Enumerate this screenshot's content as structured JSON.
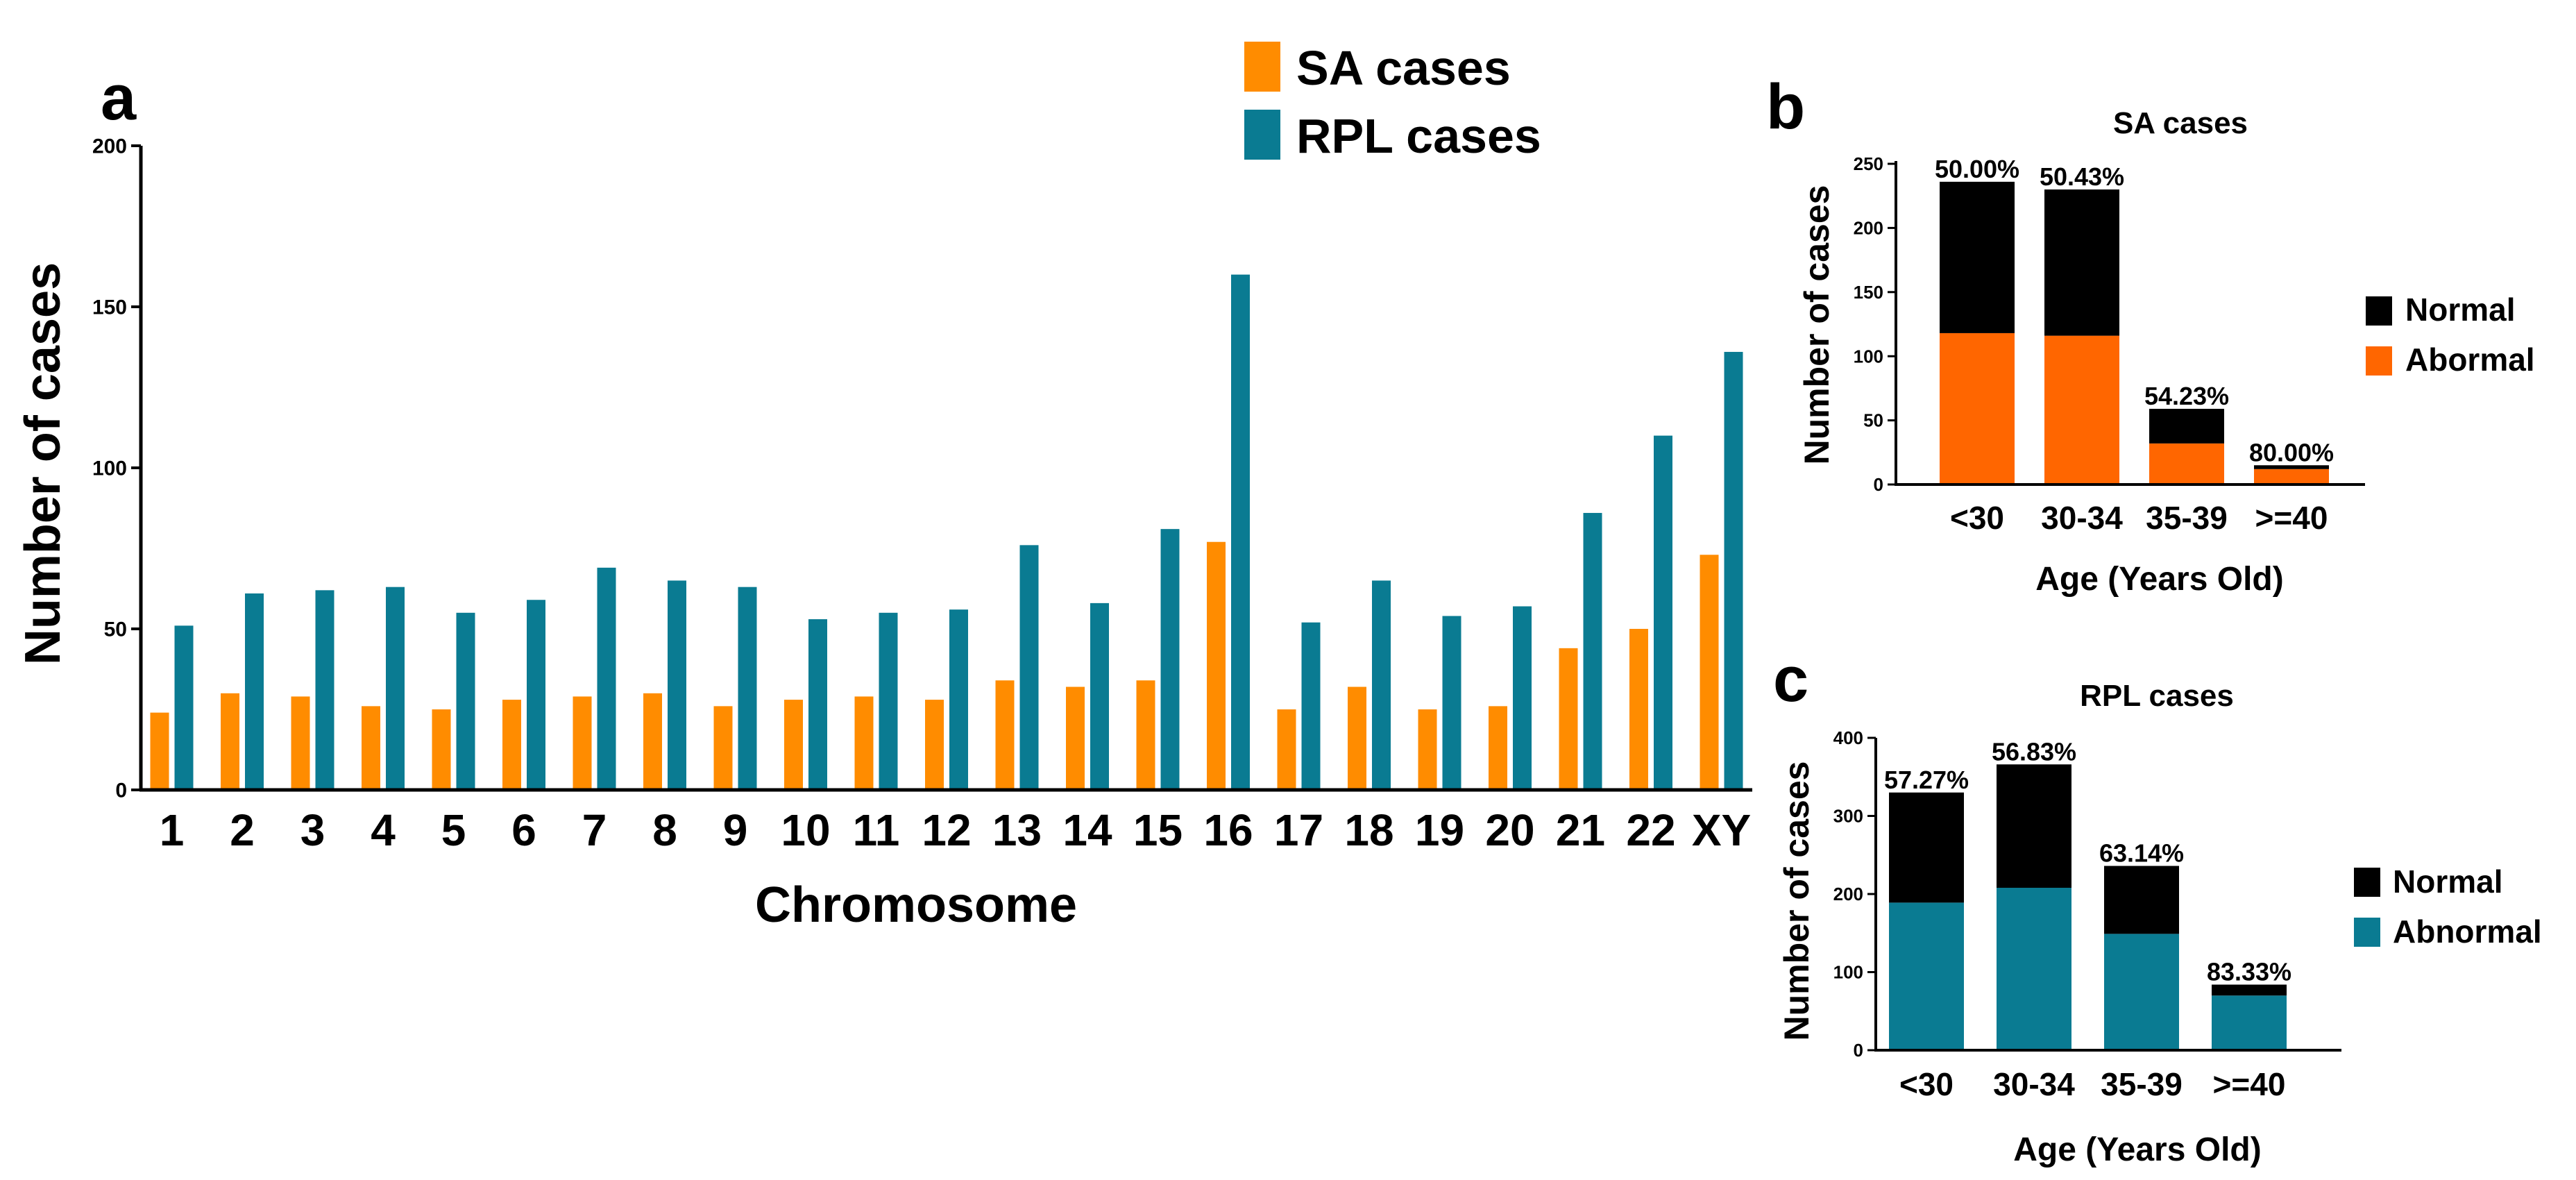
{
  "colors": {
    "sa": "#ff8c00",
    "rpl": "#0a7b92",
    "normal": "#000000",
    "abnormal_b": "#ff6600",
    "abnormal_c": "#0a7b92",
    "axis": "#000000"
  },
  "chart_data": [
    {
      "id": "a",
      "panel_label": "a",
      "type": "bar",
      "title": "",
      "xlabel": "Chromosome",
      "ylabel": "Number of cases",
      "ylim": [
        0,
        200
      ],
      "yticks": [
        "0",
        "50",
        "100",
        "150",
        "200"
      ],
      "categories": [
        "1",
        "2",
        "3",
        "4",
        "5",
        "6",
        "7",
        "8",
        "9",
        "10",
        "11",
        "12",
        "13",
        "14",
        "15",
        "16",
        "17",
        "18",
        "19",
        "20",
        "21",
        "22",
        "XY"
      ],
      "legend": {
        "position": "top",
        "entries": [
          "SA cases",
          "RPL cases"
        ]
      },
      "series": [
        {
          "name": "SA cases",
          "values": [
            24,
            30,
            29,
            26,
            25,
            28,
            29,
            30,
            26,
            28,
            29,
            28,
            34,
            32,
            34,
            77,
            25,
            32,
            25,
            26,
            44,
            50,
            73
          ]
        },
        {
          "name": "RPL cases",
          "values": [
            51,
            61,
            62,
            63,
            55,
            59,
            69,
            65,
            63,
            53,
            55,
            56,
            76,
            58,
            81,
            160,
            52,
            65,
            54,
            57,
            86,
            110,
            136
          ]
        }
      ]
    },
    {
      "id": "b",
      "panel_label": "b",
      "type": "bar",
      "stacked": true,
      "title": "SA cases",
      "xlabel": "Age (Years Old)",
      "ylabel": "Number of cases",
      "ylim": [
        0,
        250
      ],
      "yticks": [
        "0",
        "50",
        "100",
        "150",
        "200",
        "250"
      ],
      "categories": [
        "<30",
        "30-34",
        "35-39",
        ">=40"
      ],
      "legend": {
        "position": "right",
        "entries": [
          "Normal",
          "Abormal"
        ]
      },
      "series": [
        {
          "name": "Abormal",
          "values": [
            118,
            116,
            32,
            12
          ]
        },
        {
          "name": "Normal",
          "values": [
            118,
            114,
            27,
            3
          ]
        }
      ],
      "annotations": [
        "50.00%",
        "50.43%",
        "54.23%",
        "80.00%"
      ]
    },
    {
      "id": "c",
      "panel_label": "c",
      "type": "bar",
      "stacked": true,
      "title": "RPL cases",
      "xlabel": "Age (Years Old)",
      "ylabel": "Number of cases",
      "ylim": [
        0,
        400
      ],
      "yticks": [
        "0",
        "100",
        "200",
        "300",
        "400"
      ],
      "categories": [
        "<30",
        "30-34",
        "35-39",
        ">=40"
      ],
      "legend": {
        "position": "right",
        "entries": [
          "Normal",
          "Abnormal"
        ]
      },
      "series": [
        {
          "name": "Abnormal",
          "values": [
            189,
            208,
            149,
            70
          ]
        },
        {
          "name": "Normal",
          "values": [
            141,
            158,
            87,
            14
          ]
        }
      ],
      "annotations": [
        "57.27%",
        "56.83%",
        "63.14%",
        "83.33%"
      ]
    }
  ]
}
